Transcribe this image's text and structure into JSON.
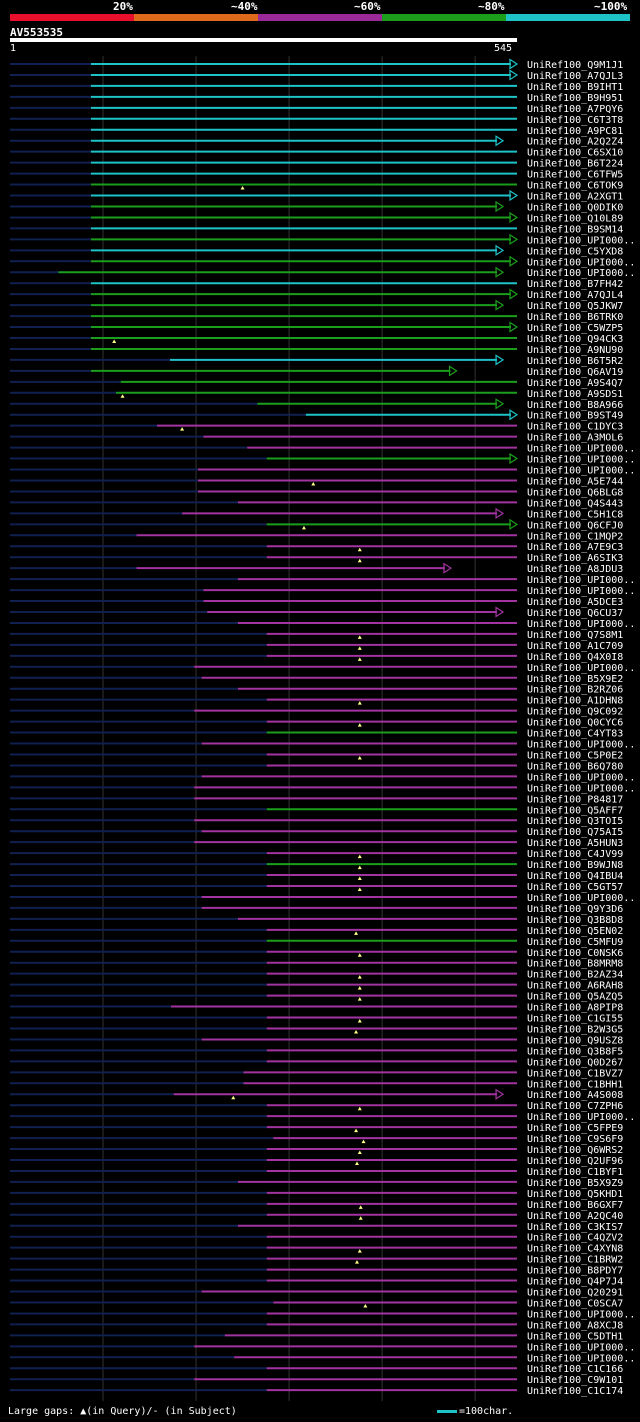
{
  "legend": {
    "segments": [
      {
        "label": "20%",
        "color": "#e8102c"
      },
      {
        "label": "~40%",
        "color": "#e06a1c"
      },
      {
        "label": "~60%",
        "color": "#9b2a98"
      },
      {
        "label": "~80%",
        "color": "#1b9e1b"
      },
      {
        "label": "~100%",
        "color": "#1ec3c8"
      }
    ]
  },
  "query": {
    "id": "AV553535",
    "start": "1",
    "end": "545",
    "length": 545
  },
  "colors": {
    "c": "#1ec3c8",
    "g": "#1b9e1b",
    "p": "#a233a0",
    "dark": "#102050",
    "grid": "#333333"
  },
  "hits": [
    {
      "label": "UniRef100_Q9M1J1",
      "s": 87,
      "e": 545,
      "c": "c",
      "arrow": true,
      "gap": null
    },
    {
      "label": "UniRef100_A7QJL3",
      "s": 87,
      "e": 545,
      "c": "c",
      "arrow": true,
      "gap": null
    },
    {
      "label": "UniRef100_B9IHT1",
      "s": 87,
      "e": 545,
      "c": "c",
      "arrow": false,
      "gap": null
    },
    {
      "label": "UniRef100_B9H951",
      "s": 87,
      "e": 545,
      "c": "c",
      "arrow": false,
      "gap": null
    },
    {
      "label": "UniRef100_A7PQY6",
      "s": 87,
      "e": 545,
      "c": "c",
      "arrow": false,
      "gap": null
    },
    {
      "label": "UniRef100_C6T3T8",
      "s": 87,
      "e": 545,
      "c": "c",
      "arrow": false,
      "gap": null
    },
    {
      "label": "UniRef100_A9PC81",
      "s": 87,
      "e": 545,
      "c": "c",
      "arrow": false,
      "gap": null
    },
    {
      "label": "UniRef100_A2Q2Z4",
      "s": 87,
      "e": 530,
      "c": "c",
      "arrow": true,
      "gap": null
    },
    {
      "label": "UniRef100_C6SX10",
      "s": 87,
      "e": 545,
      "c": "c",
      "arrow": false,
      "gap": null
    },
    {
      "label": "UniRef100_B6T224",
      "s": 87,
      "e": 545,
      "c": "c",
      "arrow": false,
      "gap": null
    },
    {
      "label": "UniRef100_C6TFW5",
      "s": 87,
      "e": 545,
      "c": "c",
      "arrow": false,
      "gap": null
    },
    {
      "label": "UniRef100_C6TOK9",
      "s": 87,
      "e": 545,
      "c": "g",
      "arrow": false,
      "gap": 250
    },
    {
      "label": "UniRef100_A2XGT1",
      "s": 87,
      "e": 545,
      "c": "c",
      "arrow": true,
      "gap": null
    },
    {
      "label": "UniRef100_Q0DIK0",
      "s": 87,
      "e": 530,
      "c": "g",
      "arrow": true,
      "gap": null
    },
    {
      "label": "UniRef100_Q10L89",
      "s": 87,
      "e": 545,
      "c": "g",
      "arrow": true,
      "gap": null
    },
    {
      "label": "UniRef100_B9SM14",
      "s": 87,
      "e": 545,
      "c": "c",
      "arrow": false,
      "gap": null
    },
    {
      "label": "UniRef100_UPI000..",
      "s": 87,
      "e": 545,
      "c": "g",
      "arrow": true,
      "gap": null
    },
    {
      "label": "UniRef100_C5YXD8",
      "s": 87,
      "e": 530,
      "c": "c",
      "arrow": true,
      "gap": null
    },
    {
      "label": "UniRef100_UPI000..",
      "s": 87,
      "e": 545,
      "c": "g",
      "arrow": true,
      "gap": null
    },
    {
      "label": "UniRef100_UPI000..",
      "s": 52,
      "e": 530,
      "c": "g",
      "arrow": true,
      "gap": null
    },
    {
      "label": "UniRef100_B7FH42",
      "s": 87,
      "e": 545,
      "c": "c",
      "arrow": false,
      "gap": null
    },
    {
      "label": "UniRef100_A7QJL4",
      "s": 87,
      "e": 545,
      "c": "g",
      "arrow": true,
      "gap": null
    },
    {
      "label": "UniRef100_Q5JKW7",
      "s": 87,
      "e": 530,
      "c": "g",
      "arrow": true,
      "gap": null
    },
    {
      "label": "UniRef100_B6TRK0",
      "s": 87,
      "e": 545,
      "c": "g",
      "arrow": false,
      "gap": null
    },
    {
      "label": "UniRef100_C5WZP5",
      "s": 87,
      "e": 545,
      "c": "g",
      "arrow": true,
      "gap": null
    },
    {
      "label": "UniRef100_Q94CK3",
      "s": 87,
      "e": 545,
      "c": "g",
      "arrow": false,
      "gap": 112
    },
    {
      "label": "UniRef100_A9NU90",
      "s": 87,
      "e": 545,
      "c": "g",
      "arrow": false,
      "gap": null
    },
    {
      "label": "UniRef100_B6T5R2",
      "s": 172,
      "e": 530,
      "c": "c",
      "arrow": true,
      "gap": null
    },
    {
      "label": "UniRef100_Q6AV19",
      "s": 87,
      "e": 480,
      "c": "g",
      "arrow": true,
      "gap": null
    },
    {
      "label": "UniRef100_A9S4Q7",
      "s": 119,
      "e": 545,
      "c": "g",
      "arrow": false,
      "gap": null
    },
    {
      "label": "UniRef100_A9SDS1",
      "s": 114,
      "e": 545,
      "c": "g",
      "arrow": false,
      "gap": 121
    },
    {
      "label": "UniRef100_B8A966",
      "s": 266,
      "e": 530,
      "c": "g",
      "arrow": true,
      "gap": null
    },
    {
      "label": "UniRef100_B9ST49",
      "s": 318,
      "e": 545,
      "c": "c",
      "arrow": true,
      "gap": null
    },
    {
      "label": "UniRef100_C1DYC3",
      "s": 158,
      "e": 545,
      "c": "p",
      "arrow": false,
      "gap": 185
    },
    {
      "label": "UniRef100_A3MOL6",
      "s": 208,
      "e": 545,
      "c": "p",
      "arrow": false,
      "gap": null
    },
    {
      "label": "UniRef100_UPI000..",
      "s": 255,
      "e": 545,
      "c": "p",
      "arrow": false,
      "gap": null
    },
    {
      "label": "UniRef100_UPI000..",
      "s": 276,
      "e": 545,
      "c": "g",
      "arrow": true,
      "gap": null
    },
    {
      "label": "UniRef100_UPI000..",
      "s": 202,
      "e": 545,
      "c": "p",
      "arrow": false,
      "gap": null
    },
    {
      "label": "UniRef100_A5E744",
      "s": 202,
      "e": 545,
      "c": "p",
      "arrow": false,
      "gap": 326
    },
    {
      "label": "UniRef100_Q6BLG8",
      "s": 202,
      "e": 545,
      "c": "p",
      "arrow": false,
      "gap": null
    },
    {
      "label": "UniRef100_Q4S443",
      "s": 245,
      "e": 545,
      "c": "p",
      "arrow": false,
      "gap": null
    },
    {
      "label": "UniRef100_C5H1C8",
      "s": 185,
      "e": 530,
      "c": "p",
      "arrow": true,
      "gap": null
    },
    {
      "label": "UniRef100_Q6CFJ0",
      "s": 276,
      "e": 545,
      "c": "g",
      "arrow": true,
      "gap": 316
    },
    {
      "label": "UniRef100_C1MQP2",
      "s": 136,
      "e": 545,
      "c": "p",
      "arrow": false,
      "gap": null
    },
    {
      "label": "UniRef100_A7E9C3",
      "s": 276,
      "e": 545,
      "c": "p",
      "arrow": false,
      "gap": 376
    },
    {
      "label": "UniRef100_A6SIK3",
      "s": 276,
      "e": 545,
      "c": "p",
      "arrow": false,
      "gap": 376
    },
    {
      "label": "UniRef100_A8JDU3",
      "s": 136,
      "e": 474,
      "c": "p",
      "arrow": true,
      "gap": null
    },
    {
      "label": "UniRef100_UPI000..",
      "s": 245,
      "e": 545,
      "c": "p",
      "arrow": false,
      "gap": null
    },
    {
      "label": "UniRef100_UPI000..",
      "s": 208,
      "e": 545,
      "c": "p",
      "arrow": false,
      "gap": null
    },
    {
      "label": "UniRef100_A5DCE3",
      "s": 208,
      "e": 545,
      "c": "p",
      "arrow": false,
      "gap": null
    },
    {
      "label": "UniRef100_Q6CU37",
      "s": 212,
      "e": 530,
      "c": "p",
      "arrow": true,
      "gap": null
    },
    {
      "label": "UniRef100_UPI000..",
      "s": 245,
      "e": 545,
      "c": "p",
      "arrow": false,
      "gap": null
    },
    {
      "label": "UniRef100_Q7S8M1",
      "s": 276,
      "e": 545,
      "c": "p",
      "arrow": false,
      "gap": 376
    },
    {
      "label": "UniRef100_A1C709",
      "s": 276,
      "e": 545,
      "c": "p",
      "arrow": false,
      "gap": 376
    },
    {
      "label": "UniRef100_Q4X0I8",
      "s": 276,
      "e": 545,
      "c": "p",
      "arrow": false,
      "gap": 376
    },
    {
      "label": "UniRef100_UPI000..",
      "s": 198,
      "e": 545,
      "c": "p",
      "arrow": false,
      "gap": null
    },
    {
      "label": "UniRef100_B5X9E2",
      "s": 206,
      "e": 545,
      "c": "p",
      "arrow": false,
      "gap": null
    },
    {
      "label": "UniRef100_B2RZ06",
      "s": 245,
      "e": 545,
      "c": "p",
      "arrow": false,
      "gap": null
    },
    {
      "label": "UniRef100_A1DHN8",
      "s": 276,
      "e": 545,
      "c": "p",
      "arrow": false,
      "gap": 376
    },
    {
      "label": "UniRef100_Q9C092",
      "s": 198,
      "e": 545,
      "c": "p",
      "arrow": false,
      "gap": null
    },
    {
      "label": "UniRef100_Q0CYC6",
      "s": 276,
      "e": 545,
      "c": "p",
      "arrow": false,
      "gap": 376
    },
    {
      "label": "UniRef100_C4YT83",
      "s": 276,
      "e": 545,
      "c": "g",
      "arrow": false,
      "gap": null
    },
    {
      "label": "UniRef100_UPI000..",
      "s": 206,
      "e": 545,
      "c": "p",
      "arrow": false,
      "gap": null
    },
    {
      "label": "UniRef100_C5P0E2",
      "s": 276,
      "e": 545,
      "c": "p",
      "arrow": false,
      "gap": 376
    },
    {
      "label": "UniRef100_B6Q780",
      "s": 276,
      "e": 545,
      "c": "p",
      "arrow": false,
      "gap": null
    },
    {
      "label": "UniRef100_UPI000..",
      "s": 206,
      "e": 545,
      "c": "p",
      "arrow": false,
      "gap": null
    },
    {
      "label": "UniRef100_UPI000..",
      "s": 198,
      "e": 545,
      "c": "p",
      "arrow": false,
      "gap": null
    },
    {
      "label": "UniRef100_P84817",
      "s": 198,
      "e": 545,
      "c": "p",
      "arrow": false,
      "gap": null
    },
    {
      "label": "UniRef100_Q5AFF7",
      "s": 276,
      "e": 545,
      "c": "g",
      "arrow": false,
      "gap": null
    },
    {
      "label": "UniRef100_Q3TOI5",
      "s": 198,
      "e": 545,
      "c": "p",
      "arrow": false,
      "gap": null
    },
    {
      "label": "UniRef100_Q75AI5",
      "s": 206,
      "e": 545,
      "c": "p",
      "arrow": false,
      "gap": null
    },
    {
      "label": "UniRef100_A5HUN3",
      "s": 198,
      "e": 545,
      "c": "p",
      "arrow": false,
      "gap": null
    },
    {
      "label": "UniRef100_C4JV99",
      "s": 276,
      "e": 545,
      "c": "p",
      "arrow": false,
      "gap": 376
    },
    {
      "label": "UniRef100_B9WJN8",
      "s": 276,
      "e": 545,
      "c": "g",
      "arrow": false,
      "gap": 376
    },
    {
      "label": "UniRef100_Q4IBU4",
      "s": 276,
      "e": 545,
      "c": "p",
      "arrow": false,
      "gap": 376
    },
    {
      "label": "UniRef100_C5GT57",
      "s": 276,
      "e": 545,
      "c": "p",
      "arrow": false,
      "gap": 376
    },
    {
      "label": "UniRef100_UPI000..",
      "s": 206,
      "e": 545,
      "c": "p",
      "arrow": false,
      "gap": null
    },
    {
      "label": "UniRef100_Q9Y3D6",
      "s": 206,
      "e": 545,
      "c": "p",
      "arrow": false,
      "gap": null
    },
    {
      "label": "UniRef100_Q3B8D8",
      "s": 245,
      "e": 545,
      "c": "p",
      "arrow": false,
      "gap": null
    },
    {
      "label": "UniRef100_Q5EN02",
      "s": 276,
      "e": 545,
      "c": "p",
      "arrow": false,
      "gap": 372
    },
    {
      "label": "UniRef100_C5MFU9",
      "s": 276,
      "e": 545,
      "c": "g",
      "arrow": false,
      "gap": null
    },
    {
      "label": "UniRef100_C0NSK6",
      "s": 276,
      "e": 545,
      "c": "p",
      "arrow": false,
      "gap": 376
    },
    {
      "label": "UniRef100_B8MRM8",
      "s": 276,
      "e": 545,
      "c": "p",
      "arrow": false,
      "gap": null
    },
    {
      "label": "UniRef100_B2AZ34",
      "s": 276,
      "e": 545,
      "c": "p",
      "arrow": false,
      "gap": 376
    },
    {
      "label": "UniRef100_A6RAH8",
      "s": 276,
      "e": 545,
      "c": "p",
      "arrow": false,
      "gap": 376
    },
    {
      "label": "UniRef100_Q5AZQ5",
      "s": 276,
      "e": 545,
      "c": "p",
      "arrow": false,
      "gap": 376
    },
    {
      "label": "UniRef100_A8PIP8",
      "s": 173,
      "e": 545,
      "c": "p",
      "arrow": false,
      "gap": null
    },
    {
      "label": "UniRef100_C1GI55",
      "s": 276,
      "e": 545,
      "c": "p",
      "arrow": false,
      "gap": 376
    },
    {
      "label": "UniRef100_B2W3G5",
      "s": 276,
      "e": 545,
      "c": "p",
      "arrow": false,
      "gap": 372
    },
    {
      "label": "UniRef100_Q9USZ8",
      "s": 206,
      "e": 545,
      "c": "p",
      "arrow": false,
      "gap": null
    },
    {
      "label": "UniRef100_Q3B8F5",
      "s": 276,
      "e": 545,
      "c": "p",
      "arrow": false,
      "gap": null
    },
    {
      "label": "UniRef100_Q0D267",
      "s": 276,
      "e": 545,
      "c": "p",
      "arrow": false,
      "gap": null
    },
    {
      "label": "UniRef100_C1BVZ7",
      "s": 251,
      "e": 545,
      "c": "p",
      "arrow": false,
      "gap": null
    },
    {
      "label": "UniRef100_C1BHH1",
      "s": 251,
      "e": 545,
      "c": "p",
      "arrow": false,
      "gap": null
    },
    {
      "label": "UniRef100_A4S008",
      "s": 176,
      "e": 530,
      "c": "p",
      "arrow": true,
      "gap": 240
    },
    {
      "label": "UniRef100_C7ZPH6",
      "s": 276,
      "e": 545,
      "c": "p",
      "arrow": false,
      "gap": 376
    },
    {
      "label": "UniRef100_UPI000..",
      "s": 276,
      "e": 545,
      "c": "p",
      "arrow": false,
      "gap": null
    },
    {
      "label": "UniRef100_C5FPE9",
      "s": 276,
      "e": 545,
      "c": "p",
      "arrow": false,
      "gap": 372
    },
    {
      "label": "UniRef100_C9S6F9",
      "s": 283,
      "e": 545,
      "c": "p",
      "arrow": false,
      "gap": 380
    },
    {
      "label": "UniRef100_Q6WRS2",
      "s": 276,
      "e": 545,
      "c": "p",
      "arrow": false,
      "gap": 376
    },
    {
      "label": "UniRef100_Q2UF96",
      "s": 276,
      "e": 545,
      "c": "p",
      "arrow": false,
      "gap": 373
    },
    {
      "label": "UniRef100_C1BYF1",
      "s": 276,
      "e": 545,
      "c": "p",
      "arrow": false,
      "gap": null
    },
    {
      "label": "UniRef100_B5X9Z9",
      "s": 245,
      "e": 545,
      "c": "p",
      "arrow": false,
      "gap": null
    },
    {
      "label": "UniRef100_Q5KHD1",
      "s": 276,
      "e": 545,
      "c": "p",
      "arrow": false,
      "gap": null
    },
    {
      "label": "UniRef100_B6GXF7",
      "s": 276,
      "e": 545,
      "c": "p",
      "arrow": false,
      "gap": 377
    },
    {
      "label": "UniRef100_A2QC40",
      "s": 276,
      "e": 545,
      "c": "p",
      "arrow": false,
      "gap": 377
    },
    {
      "label": "UniRef100_C3KIS7",
      "s": 245,
      "e": 545,
      "c": "p",
      "arrow": false,
      "gap": null
    },
    {
      "label": "UniRef100_C4QZV2",
      "s": 276,
      "e": 545,
      "c": "p",
      "arrow": false,
      "gap": null
    },
    {
      "label": "UniRef100_C4XYN8",
      "s": 276,
      "e": 545,
      "c": "p",
      "arrow": false,
      "gap": 376
    },
    {
      "label": "UniRef100_C1BRW2",
      "s": 276,
      "e": 545,
      "c": "p",
      "arrow": false,
      "gap": 373
    },
    {
      "label": "UniRef100_B8PDY7",
      "s": 276,
      "e": 545,
      "c": "p",
      "arrow": false,
      "gap": null
    },
    {
      "label": "UniRef100_Q4P7J4",
      "s": 276,
      "e": 545,
      "c": "p",
      "arrow": false,
      "gap": null
    },
    {
      "label": "UniRef100_Q20291",
      "s": 206,
      "e": 545,
      "c": "p",
      "arrow": false,
      "gap": null
    },
    {
      "label": "UniRef100_C0SCA7",
      "s": 283,
      "e": 545,
      "c": "p",
      "arrow": false,
      "gap": 382
    },
    {
      "label": "UniRef100_UPI000..",
      "s": 276,
      "e": 545,
      "c": "p",
      "arrow": false,
      "gap": null
    },
    {
      "label": "UniRef100_A8XCJ8",
      "s": 276,
      "e": 545,
      "c": "p",
      "arrow": false,
      "gap": null
    },
    {
      "label": "UniRef100_C5DTH1",
      "s": 231,
      "e": 545,
      "c": "p",
      "arrow": false,
      "gap": null
    },
    {
      "label": "UniRef100_UPI000..",
      "s": 198,
      "e": 545,
      "c": "p",
      "arrow": false,
      "gap": null
    },
    {
      "label": "UniRef100_UPI000..",
      "s": 241,
      "e": 545,
      "c": "p",
      "arrow": false,
      "gap": null
    },
    {
      "label": "UniRef100_C1C166",
      "s": 276,
      "e": 545,
      "c": "p",
      "arrow": false,
      "gap": null
    },
    {
      "label": "UniRef100_C9W101",
      "s": 198,
      "e": 545,
      "c": "p",
      "arrow": false,
      "gap": null
    },
    {
      "label": "UniRef100_C1C174",
      "s": 276,
      "e": 545,
      "c": "p",
      "arrow": false,
      "gap": null
    }
  ],
  "footer": {
    "gaps_label": "Large gaps: ▲(in Query)/- (in Subject)",
    "scale_label": "=100char."
  }
}
